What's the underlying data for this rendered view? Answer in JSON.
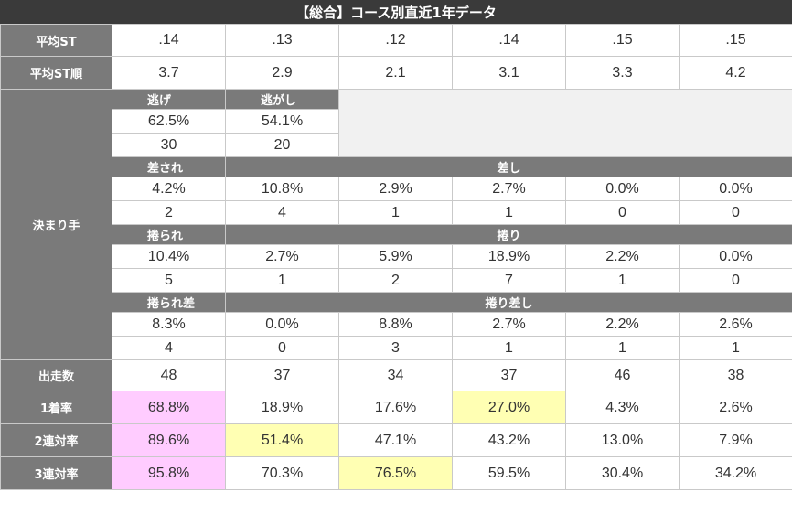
{
  "title": "【総合】コース別直近1年データ",
  "rows": {
    "avg_st": {
      "label": "平均ST",
      "values": [
        ".14",
        ".13",
        ".12",
        ".14",
        ".15",
        ".15"
      ]
    },
    "avg_st_rank": {
      "label": "平均ST順",
      "values": [
        "3.7",
        "2.9",
        "2.1",
        "3.1",
        "3.3",
        "4.2"
      ]
    },
    "kimarite": {
      "label": "決まり手",
      "nige": {
        "label": "逃げ",
        "pct": "62.5%",
        "count": "30"
      },
      "nigashi": {
        "label": "逃がし",
        "pct": "54.1%",
        "count": "20"
      },
      "sasare": {
        "label": "差され",
        "pct": "4.2%",
        "count": "2"
      },
      "sashi": {
        "label": "差し",
        "pct": [
          "10.8%",
          "2.9%",
          "2.7%",
          "0.0%",
          "0.0%"
        ],
        "count": [
          "4",
          "1",
          "1",
          "0",
          "0"
        ]
      },
      "makurare": {
        "label": "捲られ",
        "pct": "10.4%",
        "count": "5"
      },
      "makuri": {
        "label": "捲り",
        "pct": [
          "2.7%",
          "5.9%",
          "18.9%",
          "2.2%",
          "0.0%"
        ],
        "count": [
          "1",
          "2",
          "7",
          "1",
          "0"
        ]
      },
      "makurare_sashi": {
        "label": "捲られ差",
        "pct": "8.3%",
        "count": "4"
      },
      "makuri_sashi": {
        "label": "捲り差し",
        "pct": [
          "0.0%",
          "8.8%",
          "2.7%",
          "2.2%",
          "2.6%"
        ],
        "count": [
          "0",
          "3",
          "1",
          "1",
          "1"
        ]
      }
    },
    "starts": {
      "label": "出走数",
      "values": [
        "48",
        "37",
        "34",
        "37",
        "46",
        "38"
      ]
    },
    "win_rate": {
      "label": "1着率",
      "values": [
        "68.8%",
        "18.9%",
        "17.6%",
        "27.0%",
        "4.3%",
        "2.6%"
      ]
    },
    "top2_rate": {
      "label": "2連対率",
      "values": [
        "89.6%",
        "51.4%",
        "47.1%",
        "43.2%",
        "13.0%",
        "7.9%"
      ]
    },
    "top3_rate": {
      "label": "3連対率",
      "values": [
        "95.8%",
        "70.3%",
        "76.5%",
        "59.5%",
        "30.4%",
        "34.2%"
      ]
    }
  },
  "highlight_colors": {
    "pink": "#ffccff",
    "yellow": "#ffffb3",
    "header": "#7a7a7a",
    "title_bar": "#3a3a3a"
  }
}
